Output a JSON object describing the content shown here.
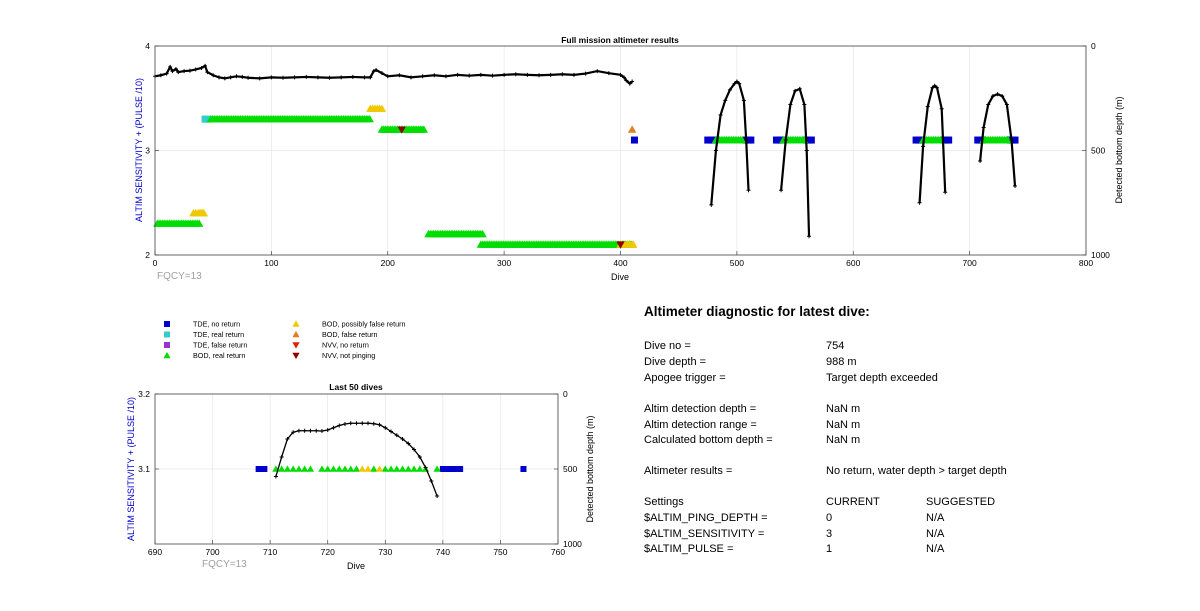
{
  "top_chart": {
    "title": "Full mission altimeter results",
    "xlabel": "Dive",
    "ylabel_left": "ALTIM SENSITIVITY + (PULSE /10)",
    "ylabel_right": "Detected bottom depth (m)",
    "annotation": "FQCY=13",
    "x_ticks": [
      "0",
      "100",
      "200",
      "300",
      "400",
      "500",
      "600",
      "700",
      "800"
    ],
    "y_left_ticks": [
      "2",
      "3",
      "4"
    ],
    "y_right_ticks": [
      "0",
      "500",
      "1000"
    ]
  },
  "bottom_chart": {
    "title": "Last 50 dives",
    "xlabel": "Dive",
    "ylabel_left": "ALTIM SENSITIVITY + (PULSE /10)",
    "ylabel_right": "Detected bottom depth (m)",
    "annotation": "FQCY=13",
    "x_ticks": [
      "690",
      "700",
      "710",
      "720",
      "730",
      "740",
      "750",
      "760"
    ],
    "y_left_ticks": [
      "3.1",
      "3.2"
    ],
    "y_right_ticks": [
      "0",
      "500",
      "1000"
    ]
  },
  "legend": [
    {
      "label": "TDE, no return",
      "marker": "square",
      "color": "#0000cc"
    },
    {
      "label": "TDE, real return",
      "marker": "square",
      "color": "#33cccc"
    },
    {
      "label": "TDE, false return",
      "marker": "square",
      "color": "#9933cc"
    },
    {
      "label": "BOD, real return",
      "marker": "tri-up",
      "color": "#00dd00"
    },
    {
      "label": "BOD, possibly false return",
      "marker": "tri-up",
      "color": "#f0c800"
    },
    {
      "label": "BOD, false return",
      "marker": "tri-up",
      "color": "#e08020"
    },
    {
      "label": "NVV, no return",
      "marker": "tri-down",
      "color": "#dd2200"
    },
    {
      "label": "NVV, not pinging",
      "marker": "tri-down",
      "color": "#8b0000"
    }
  ],
  "diagnostic": {
    "title": "Altimeter diagnostic for latest dive:",
    "dive_no_label": "Dive no =",
    "dive_no": "754",
    "dive_depth_label": "Dive depth =",
    "dive_depth": "988 m",
    "apogee_label": "Apogee trigger =",
    "apogee": "Target depth exceeded",
    "det_depth_label": "Altim detection depth =",
    "det_depth": "NaN m",
    "det_range_label": "Altim detection range =",
    "det_range": "NaN m",
    "calc_depth_label": "Calculated bottom depth =",
    "calc_depth": "NaN m",
    "results_label": "Altimeter results =",
    "results": "No return, water depth > target depth",
    "settings_label": "Settings",
    "current_hdr": "CURRENT",
    "suggested_hdr": "SUGGESTED",
    "ping_label": "$ALTIM_PING_DEPTH =",
    "ping_cur": "0",
    "ping_sug": "N/A",
    "sens_label": "$ALTIM_SENSITIVITY =",
    "sens_cur": "3",
    "sens_sug": "N/A",
    "pulse_label": "$ALTIM_PULSE =",
    "pulse_cur": "1",
    "pulse_sug": "N/A"
  },
  "chart_data": [
    {
      "type": "scatter",
      "title": "Full mission altimeter results",
      "xlim": [
        0,
        800
      ],
      "ylim_left": [
        2,
        4
      ],
      "ylim_right": [
        0,
        1000
      ],
      "right_axis_reversed": true,
      "grid": true,
      "series": [
        {
          "name": "TDE, no return",
          "axis": "left",
          "marker": "square",
          "color": "#0000cc",
          "x": [
            412,
            475,
            478,
            480,
            508,
            510,
            512,
            534,
            536,
            538,
            560,
            562,
            564,
            654,
            656,
            658,
            678,
            680,
            682,
            707,
            709,
            711,
            735,
            737,
            739
          ],
          "y": [
            3.1,
            3.1,
            3.1,
            3.1,
            3.1,
            3.1,
            3.1,
            3.1,
            3.1,
            3.1,
            3.1,
            3.1,
            3.1,
            3.1,
            3.1,
            3.1,
            3.1,
            3.1,
            3.1,
            3.1,
            3.1,
            3.1,
            3.1,
            3.1,
            3.1
          ]
        },
        {
          "name": "TDE, real return",
          "axis": "left",
          "marker": "square",
          "color": "#33cccc",
          "x": [
            43,
            45
          ],
          "y": [
            3.3,
            3.3
          ]
        },
        {
          "name": "BOD, real return",
          "axis": "left",
          "marker": "tri-up",
          "color": "#00dd00",
          "bands": [
            {
              "x0": 2,
              "x1": 38,
              "y": 2.3
            },
            {
              "x0": 48,
              "x1": 185,
              "y": 3.3
            },
            {
              "x0": 195,
              "x1": 232,
              "y": 3.2
            },
            {
              "x0": 235,
              "x1": 282,
              "y": 2.2
            },
            {
              "x0": 280,
              "x1": 410,
              "y": 2.1
            },
            {
              "x0": 482,
              "x1": 505,
              "y": 3.1
            },
            {
              "x0": 540,
              "x1": 558,
              "y": 3.1
            },
            {
              "x0": 660,
              "x1": 676,
              "y": 3.1
            },
            {
              "x0": 712,
              "x1": 734,
              "y": 3.1
            }
          ]
        },
        {
          "name": "BOD, possibly false return",
          "axis": "left",
          "marker": "tri-up",
          "color": "#f0c800",
          "x": [
            33,
            35,
            37,
            38,
            39,
            40,
            41,
            42,
            185,
            187,
            189,
            191,
            193,
            195,
            400,
            402,
            404,
            406,
            408,
            410,
            411
          ],
          "y": [
            2.4,
            2.4,
            2.4,
            2.4,
            2.4,
            2.4,
            2.4,
            2.4,
            3.4,
            3.4,
            3.4,
            3.4,
            3.4,
            3.4,
            2.1,
            2.1,
            2.1,
            2.1,
            2.1,
            2.1,
            2.1
          ]
        },
        {
          "name": "BOD, false return",
          "axis": "left",
          "marker": "tri-up",
          "color": "#e08020",
          "x": [
            410
          ],
          "y": [
            3.2
          ]
        },
        {
          "name": "NVV, not pinging",
          "axis": "left",
          "marker": "tri-down",
          "color": "#8b0000",
          "x": [
            212,
            400
          ],
          "y": [
            3.2,
            2.1
          ]
        },
        {
          "name": "",
          "axis": "right",
          "type": "line",
          "color": "#000000",
          "marker": "plus",
          "x": [
            0,
            5,
            10,
            13,
            15,
            18,
            20,
            25,
            30,
            35,
            40,
            43,
            45,
            50,
            55,
            60,
            65,
            70,
            75,
            80,
            90,
            100,
            110,
            120,
            130,
            140,
            150,
            160,
            170,
            180,
            185,
            188,
            190,
            195,
            200,
            210,
            220,
            230,
            240,
            250,
            260,
            270,
            280,
            290,
            300,
            310,
            320,
            330,
            340,
            350,
            360,
            370,
            380,
            390,
            400,
            403,
            405,
            408,
            410
          ],
          "y": [
            145,
            140,
            132,
            100,
            120,
            110,
            125,
            120,
            118,
            112,
            105,
            95,
            125,
            140,
            150,
            155,
            150,
            145,
            148,
            152,
            155,
            150,
            152,
            150,
            148,
            150,
            152,
            150,
            148,
            150,
            150,
            120,
            115,
            130,
            145,
            140,
            150,
            145,
            140,
            145,
            138,
            142,
            138,
            142,
            138,
            135,
            138,
            140,
            138,
            135,
            138,
            132,
            120,
            130,
            138,
            150,
            165,
            180,
            170
          ]
        },
        {
          "name": "",
          "axis": "right",
          "type": "line",
          "color": "#000000",
          "marker": "plus",
          "x": [
            478,
            482,
            486,
            490,
            494,
            498,
            500,
            502,
            506,
            508,
            510
          ],
          "y": [
            760,
            500,
            330,
            260,
            210,
            180,
            170,
            180,
            260,
            450,
            690
          ]
        },
        {
          "name": "",
          "axis": "right",
          "type": "line",
          "color": "#000000",
          "marker": "plus",
          "x": [
            538,
            542,
            546,
            550,
            554,
            558,
            560,
            562
          ],
          "y": [
            690,
            450,
            280,
            215,
            205,
            280,
            500,
            910
          ]
        },
        {
          "name": "",
          "axis": "right",
          "type": "line",
          "color": "#000000",
          "marker": "plus",
          "x": [
            657,
            660,
            664,
            668,
            670,
            672,
            676,
            679
          ],
          "y": [
            750,
            480,
            290,
            200,
            190,
            200,
            300,
            700
          ]
        },
        {
          "name": "",
          "axis": "right",
          "type": "line",
          "color": "#000000",
          "marker": "plus",
          "x": [
            709,
            712,
            716,
            720,
            724,
            728,
            732,
            736,
            739
          ],
          "y": [
            550,
            390,
            280,
            240,
            230,
            240,
            280,
            450,
            670
          ]
        }
      ]
    },
    {
      "type": "scatter",
      "title": "Last 50 dives",
      "xlim": [
        690,
        760
      ],
      "ylim_left": [
        3.0,
        3.2
      ],
      "ylim_right": [
        0,
        1000
      ],
      "right_axis_reversed": true,
      "grid": true,
      "series": [
        {
          "name": "TDE, no return",
          "axis": "left",
          "marker": "square",
          "color": "#0000cc",
          "x": [
            708,
            709,
            740,
            741,
            742,
            743,
            754
          ],
          "y": [
            3.1,
            3.1,
            3.1,
            3.1,
            3.1,
            3.1,
            3.1
          ]
        },
        {
          "name": "BOD, real return",
          "axis": "left",
          "marker": "tri-up",
          "color": "#00dd00",
          "x": [
            711,
            712,
            713,
            714,
            715,
            716,
            717,
            719,
            720,
            721,
            722,
            723,
            724,
            725,
            728,
            730,
            731,
            732,
            733,
            734,
            735,
            736,
            737,
            739
          ],
          "y": [
            3.1,
            3.1,
            3.1,
            3.1,
            3.1,
            3.1,
            3.1,
            3.1,
            3.1,
            3.1,
            3.1,
            3.1,
            3.1,
            3.1,
            3.1,
            3.1,
            3.1,
            3.1,
            3.1,
            3.1,
            3.1,
            3.1,
            3.1,
            3.1
          ]
        },
        {
          "name": "BOD, possibly false return",
          "axis": "left",
          "marker": "tri-up",
          "color": "#f0c800",
          "x": [
            726,
            727,
            729
          ],
          "y": [
            3.1,
            3.1,
            3.1
          ]
        },
        {
          "name": "",
          "axis": "right",
          "type": "line",
          "color": "#000000",
          "marker": "plus",
          "x": [
            711,
            712,
            713,
            714,
            715,
            716,
            717,
            718,
            719,
            720,
            721,
            722,
            723,
            724,
            725,
            726,
            727,
            728,
            729,
            730,
            731,
            732,
            733,
            734,
            735,
            736,
            737,
            738,
            739
          ],
          "y": [
            550,
            420,
            300,
            255,
            245,
            245,
            245,
            245,
            247,
            240,
            225,
            210,
            200,
            195,
            195,
            195,
            195,
            198,
            205,
            225,
            250,
            275,
            300,
            330,
            370,
            420,
            490,
            580,
            680
          ]
        }
      ]
    }
  ]
}
